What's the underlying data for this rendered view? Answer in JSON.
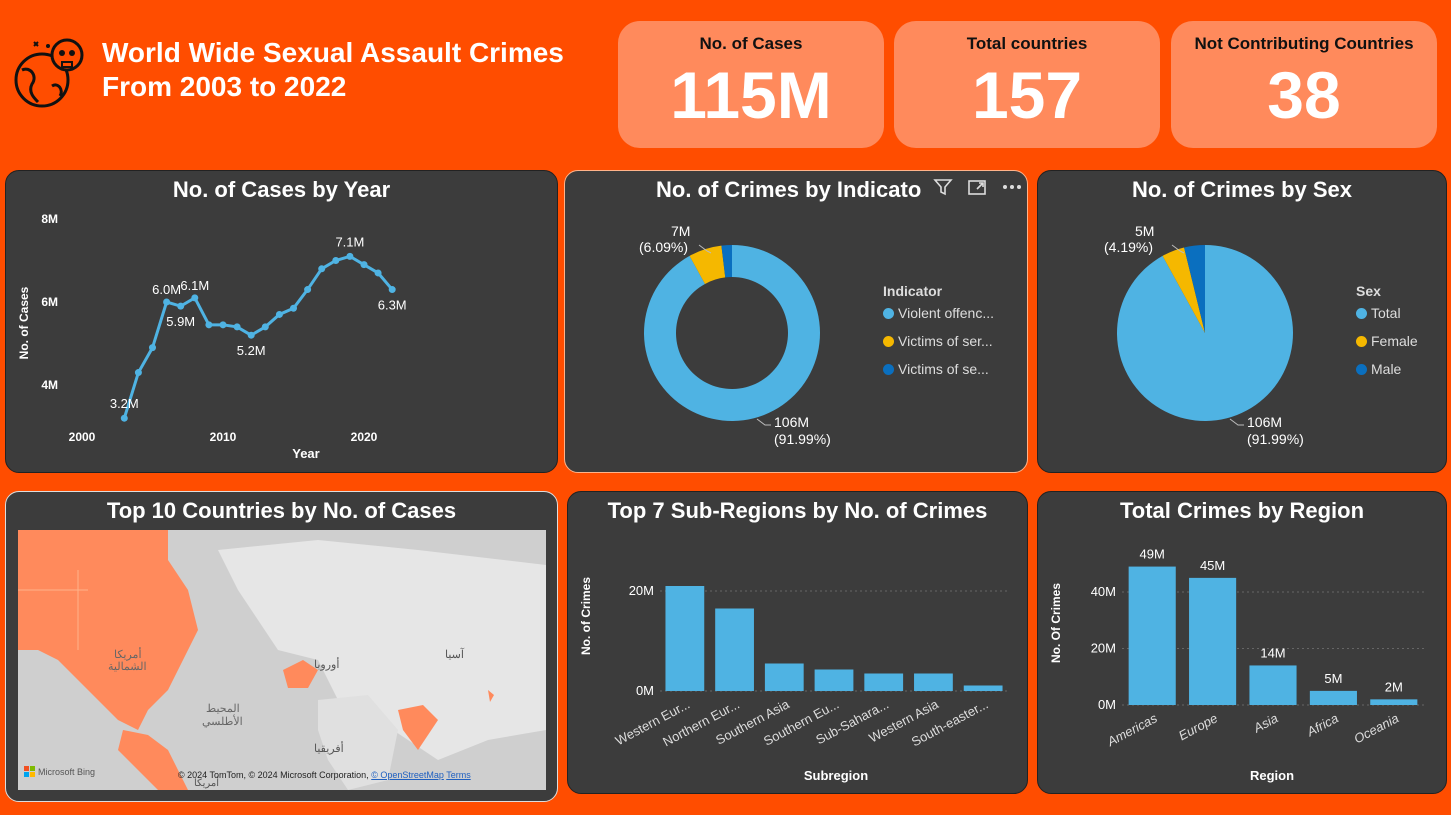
{
  "header": {
    "title_line1": "World Wide Sexual Assault Crimes",
    "title_line2": "From 2003 to 2022",
    "logo_icon": "globe-skull-icon"
  },
  "kpis": [
    {
      "label": "No. of Cases",
      "value": "115M"
    },
    {
      "label": "Total countries",
      "value": "157"
    },
    {
      "label": "Not Contributing Countries",
      "value": "38"
    }
  ],
  "cases_by_year": {
    "title": "No. of Cases by Year",
    "xlabel": "Year",
    "ylabel": "No. of Cases",
    "x_ticks": [
      "2000",
      "2010",
      "2020"
    ],
    "y_ticks": [
      "8M",
      "6M",
      "4M"
    ],
    "labels": [
      "3.2M",
      "6.0M",
      "5.9M",
      "6.1M",
      "5.2M",
      "7.1M",
      "6.3M"
    ]
  },
  "indicator": {
    "title": "No. of Crimes by Indicato",
    "legend_title": "Indicator",
    "legend": [
      "Violent offenc...",
      "Victims of ser...",
      "Victims of se..."
    ],
    "label_big_1": "106M",
    "label_big_2": "(91.99%)",
    "label_small_1": "7M",
    "label_small_2": "(6.09%)"
  },
  "sex": {
    "title": "No. of Crimes by Sex",
    "legend_title": "Sex",
    "legend": [
      "Total",
      "Female",
      "Male"
    ],
    "label_big_1": "106M",
    "label_big_2": "(91.99%)",
    "label_small_1": "5M",
    "label_small_2": "(4.19%)"
  },
  "map": {
    "title": "Top 10 Countries by No. of Cases",
    "labels": [
      "أمريكا",
      "الشمالية",
      "المحيط",
      "الأطلسي",
      "أوروبا",
      "آسيا",
      "أفريقيا",
      "أمريكا"
    ],
    "brand": "Microsoft Bing",
    "attribution": "© 2024 TomTom, © 2024 Microsoft Corporation,",
    "osm": "© OpenStreetMap",
    "terms": "Terms"
  },
  "subregions": {
    "title": "Top 7 Sub-Regions by No. of Crimes",
    "xlabel": "Subregion",
    "ylabel": "No. of Crimes",
    "y_ticks": [
      "20M",
      "0M"
    ]
  },
  "region": {
    "title": "Total Crimes by Region",
    "xlabel": "Region",
    "ylabel": "No. Of Crimes",
    "y_ticks": [
      "40M",
      "20M",
      "0M"
    ]
  },
  "colors": {
    "background": "#ff4d00",
    "panel": "#3c3c3c",
    "kpi": "#ff8a5c",
    "blue": "#4fb3e3",
    "yellow": "#f5b800",
    "dark_blue": "#0a6fbf"
  },
  "chart_data": [
    {
      "type": "line",
      "title": "No. of Cases by Year",
      "xlabel": "Year",
      "ylabel": "No. of Cases",
      "x": [
        2003,
        2004,
        2005,
        2006,
        2007,
        2008,
        2009,
        2010,
        2011,
        2012,
        2013,
        2014,
        2015,
        2016,
        2017,
        2018,
        2019,
        2020,
        2021,
        2022
      ],
      "values": [
        3.2,
        4.3,
        4.9,
        6.0,
        5.9,
        6.1,
        5.45,
        5.45,
        5.4,
        5.2,
        5.4,
        5.7,
        5.85,
        6.3,
        6.8,
        7.0,
        7.1,
        6.9,
        6.7,
        6.3
      ],
      "xlim": [
        2000,
        2023
      ],
      "ylim": [
        3,
        8.5
      ],
      "unit": "M"
    },
    {
      "type": "pie",
      "title": "No. of Crimes by Indicato",
      "donut": true,
      "labels": [
        "Violent offenc...",
        "Victims of ser...",
        "Victims of se..."
      ],
      "values": [
        91.99,
        6.09,
        1.92
      ]
    },
    {
      "type": "pie",
      "title": "No. of Crimes by Sex",
      "labels": [
        "Total",
        "Female",
        "Male"
      ],
      "values": [
        91.99,
        4.19,
        3.82
      ]
    },
    {
      "type": "bar",
      "title": "Top 7 Sub-Regions by No. of Crimes",
      "xlabel": "Subregion",
      "ylabel": "No. of Crimes",
      "categories": [
        "Western Eur...",
        "Northern Eur...",
        "Southern Asia",
        "Southern Eu...",
        "Sub-Sahara...",
        "Western Asia",
        "South-easter..."
      ],
      "values": [
        21,
        16.5,
        5.5,
        4.3,
        3.5,
        3.5,
        1.1
      ],
      "ylim": [
        0,
        25
      ],
      "unit": "M"
    },
    {
      "type": "bar",
      "title": "Total Crimes by Region",
      "xlabel": "Region",
      "ylabel": "No. Of Crimes",
      "categories": [
        "Americas",
        "Europe",
        "Asia",
        "Africa",
        "Oceania"
      ],
      "values": [
        49,
        45,
        14,
        5,
        2
      ],
      "data_labels": [
        "49M",
        "45M",
        "14M",
        "5M",
        "2M"
      ],
      "ylim": [
        0,
        55
      ],
      "unit": "M"
    }
  ]
}
